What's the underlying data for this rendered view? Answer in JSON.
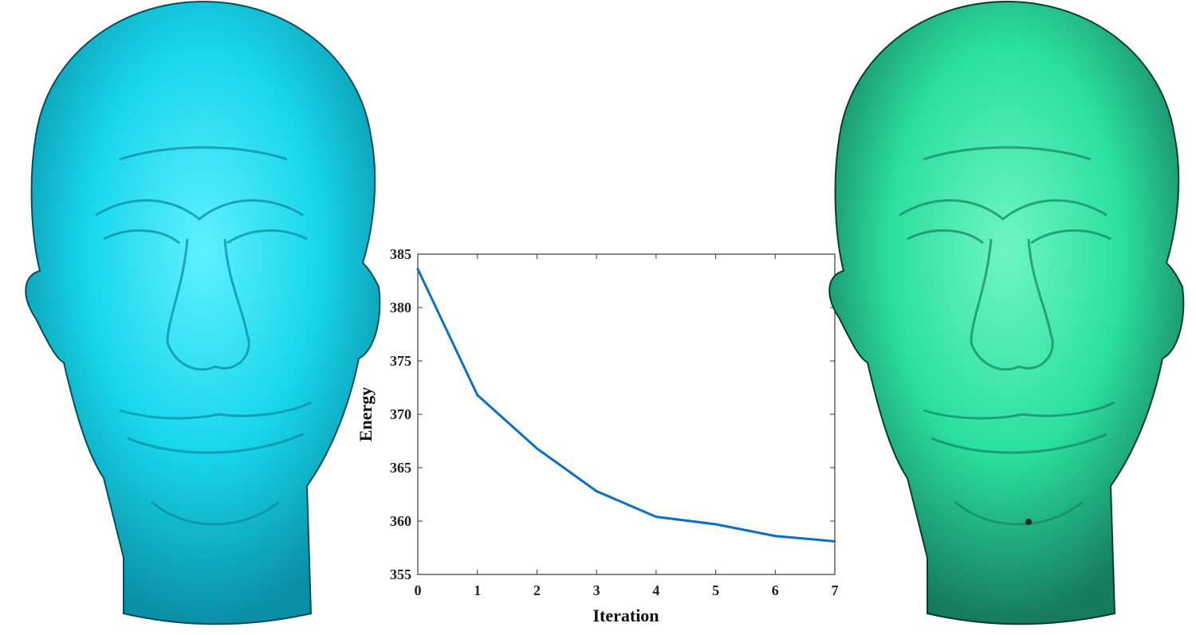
{
  "figure": {
    "left_mesh": {
      "color": "#14d4e6"
    },
    "right_mesh": {
      "color": "#2ee3a4"
    }
  },
  "chart_data": {
    "type": "line",
    "title": "",
    "xlabel": "Iteration",
    "ylabel": "Energy",
    "x": [
      0,
      1,
      2,
      3,
      4,
      5,
      6,
      7
    ],
    "series": [
      {
        "values": [
          383.6,
          371.8,
          366.8,
          362.8,
          360.4,
          359.7,
          358.6,
          358.1
        ],
        "color": "#0e6fc1"
      }
    ],
    "xlim": [
      0,
      7
    ],
    "ylim": [
      355,
      385
    ],
    "xticks": [
      "0",
      "1",
      "2",
      "3",
      "4",
      "5",
      "6",
      "7"
    ],
    "yticks": [
      "355",
      "360",
      "365",
      "370",
      "375",
      "380",
      "385"
    ],
    "grid": false,
    "box": true
  }
}
